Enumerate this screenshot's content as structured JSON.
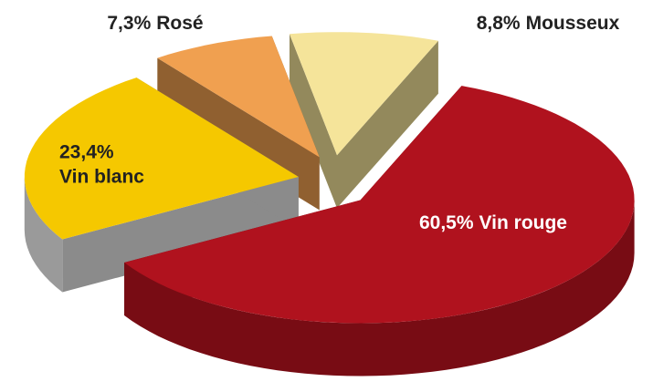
{
  "chart_data": {
    "type": "pie",
    "categories": [
      "Vin rouge",
      "Vin blanc",
      "Rosé",
      "Mousseux"
    ],
    "values": [
      60.5,
      23.4,
      7.3,
      8.8
    ],
    "value_labels": [
      "60,5%",
      "23,4%",
      "7,3%",
      "8,8%"
    ],
    "colors": [
      "#b0121e",
      "#f5c800",
      "#f0a050",
      "#f5e49a"
    ]
  }
}
